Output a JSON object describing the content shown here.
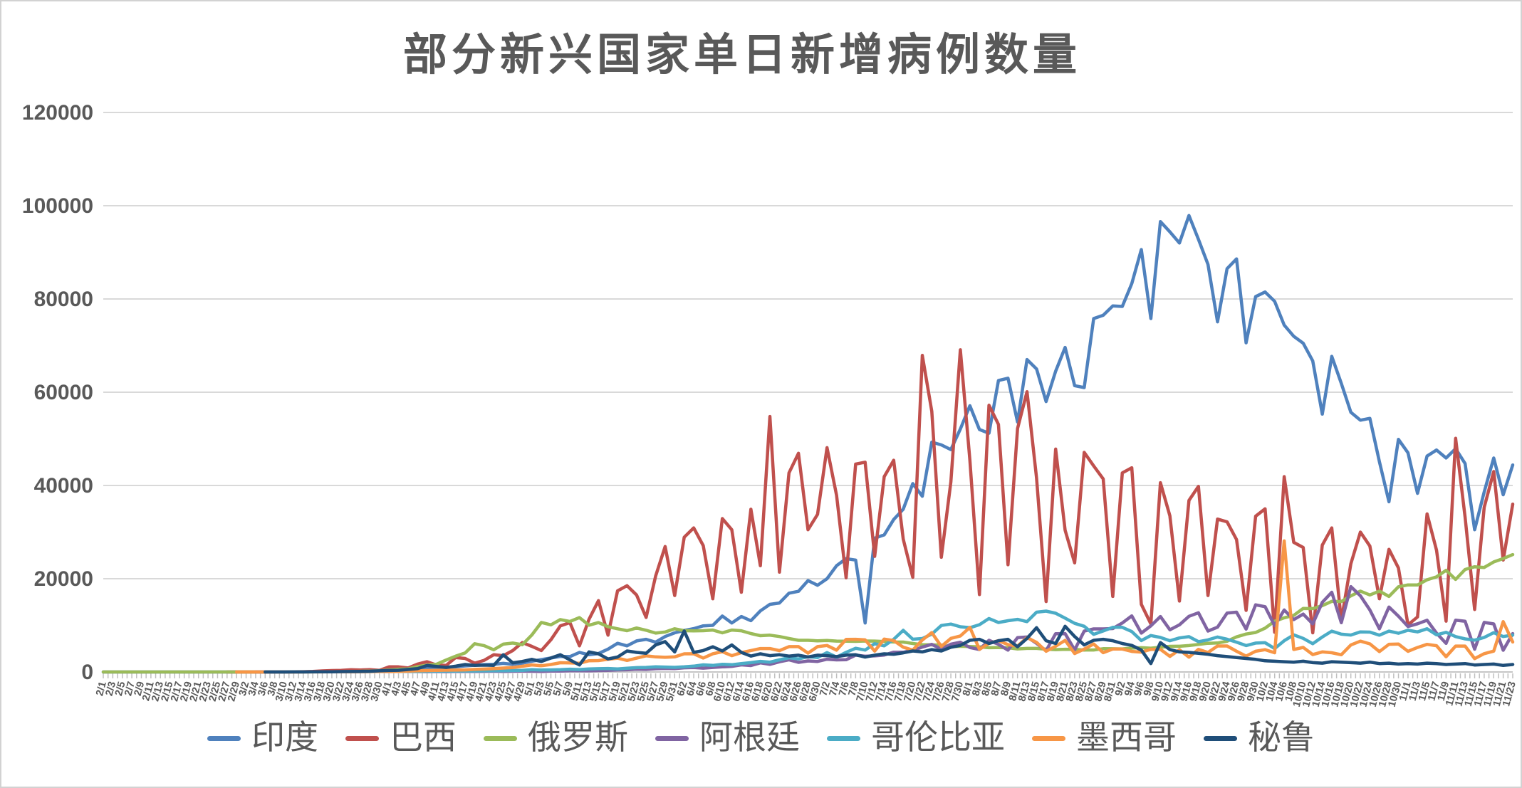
{
  "chart_data": {
    "type": "line",
    "title": "部分新兴国家单日新增病例数量",
    "xlabel": "",
    "ylabel": "",
    "ylim": [
      0,
      120000
    ],
    "y_ticks": [
      "0",
      "20000",
      "40000",
      "60000",
      "80000",
      "100000",
      "120000"
    ],
    "grid": true,
    "legend_position": "bottom",
    "axis_text_color": "#595959",
    "gridline_color": "#d9d9d9",
    "categories": [
      "2/1",
      "2/3",
      "2/5",
      "2/7",
      "2/9",
      "2/11",
      "2/13",
      "2/15",
      "2/17",
      "2/19",
      "2/21",
      "2/23",
      "2/25",
      "2/27",
      "2/29",
      "3/2",
      "3/4",
      "3/6",
      "3/8",
      "3/10",
      "3/12",
      "3/14",
      "3/16",
      "3/18",
      "3/20",
      "3/22",
      "3/24",
      "3/26",
      "3/28",
      "3/30",
      "4/1",
      "4/3",
      "4/5",
      "4/7",
      "4/9",
      "4/11",
      "4/13",
      "4/15",
      "4/17",
      "4/19",
      "4/21",
      "4/23",
      "4/25",
      "4/27",
      "4/29",
      "5/1",
      "5/3",
      "5/5",
      "5/7",
      "5/9",
      "5/11",
      "5/13",
      "5/15",
      "5/17",
      "5/19",
      "5/21",
      "5/23",
      "5/25",
      "5/27",
      "5/29",
      "5/31",
      "6/2",
      "6/4",
      "6/6",
      "6/8",
      "6/10",
      "6/12",
      "6/14",
      "6/16",
      "6/18",
      "6/20",
      "6/22",
      "6/24",
      "6/26",
      "6/28",
      "6/30",
      "7/2",
      "7/4",
      "7/6",
      "7/8",
      "7/10",
      "7/12",
      "7/14",
      "7/16",
      "7/18",
      "7/20",
      "7/22",
      "7/24",
      "7/26",
      "7/28",
      "7/30",
      "8/1",
      "8/3",
      "8/5",
      "8/7",
      "8/9",
      "8/11",
      "8/13",
      "8/15",
      "8/17",
      "8/19",
      "8/21",
      "8/23",
      "8/25",
      "8/27",
      "8/29",
      "8/31",
      "9/2",
      "9/4",
      "9/6",
      "9/8",
      "9/10",
      "9/12",
      "9/14",
      "9/16",
      "9/18",
      "9/20",
      "9/22",
      "9/24",
      "9/26",
      "9/28",
      "9/30",
      "10/2",
      "10/4",
      "10/6",
      "10/8",
      "10/10",
      "10/12",
      "10/14",
      "10/16",
      "10/18",
      "10/20",
      "10/22",
      "10/24",
      "10/26",
      "10/28",
      "10/30",
      "11/1",
      "11/3",
      "11/5",
      "11/7",
      "11/9",
      "11/11",
      "11/13",
      "11/15",
      "11/17",
      "11/19",
      "11/21",
      "11/23"
    ],
    "series": [
      {
        "name": "印度",
        "key": "india",
        "color": "#4F81BD",
        "values": [
          0,
          0,
          0,
          0,
          0,
          0,
          0,
          0,
          0,
          0,
          0,
          0,
          0,
          0,
          0,
          2,
          3,
          5,
          8,
          10,
          15,
          25,
          30,
          50,
          75,
          100,
          120,
          150,
          180,
          230,
          400,
          550,
          600,
          700,
          850,
          900,
          1000,
          1100,
          1300,
          1450,
          1550,
          1650,
          1850,
          1650,
          1900,
          2300,
          2650,
          3000,
          3350,
          3300,
          4200,
          3700,
          3950,
          4900,
          6150,
          5600,
          6650,
          7000,
          6400,
          7600,
          8400,
          8900,
          9300,
          9900,
          10000,
          12000,
          10500,
          11900,
          11000,
          13100,
          14500,
          14800,
          16900,
          17300,
          19600,
          18600,
          20000,
          22800,
          24300,
          24000,
          10500,
          28700,
          29400,
          32700,
          34900,
          40400,
          37700,
          49300,
          48700,
          47700,
          52100,
          57100,
          52000,
          51200,
          62500,
          63000,
          53600,
          67000,
          65000,
          58000,
          64500,
          69600,
          61400,
          61000,
          75800,
          76500,
          78500,
          78400,
          83300,
          90600,
          75800,
          96600,
          94400,
          92000,
          97900,
          92800,
          87400,
          75100,
          86500,
          88600,
          70600,
          80500,
          81500,
          79500,
          74400,
          72000,
          70500,
          66700,
          55300,
          67700,
          61900,
          55700,
          54000,
          54400,
          45100,
          36500,
          49900,
          47000,
          38300,
          46300,
          47600,
          45900,
          47900,
          44700,
          30500,
          38600,
          45900,
          38000,
          44400
        ]
      },
      {
        "name": "巴西",
        "key": "brazil",
        "color": "#C0504D",
        "values": [
          null,
          null,
          null,
          null,
          null,
          null,
          null,
          null,
          null,
          null,
          null,
          null,
          null,
          1,
          1,
          1,
          2,
          6,
          13,
          25,
          34,
          60,
          120,
          230,
          300,
          350,
          480,
          430,
          500,
          350,
          1100,
          1100,
          850,
          1700,
          2200,
          1500,
          1400,
          3100,
          2900,
          1900,
          2500,
          3700,
          3500,
          4600,
          6300,
          5500,
          4600,
          6900,
          9900,
          10600,
          5600,
          11300,
          15300,
          7900,
          17400,
          18500,
          16500,
          11700,
          20600,
          26900,
          16400,
          28900,
          30900,
          27100,
          15700,
          32900,
          30500,
          17100,
          34900,
          22800,
          54800,
          21400,
          42700,
          46900,
          30500,
          33800,
          48100,
          37900,
          20200,
          44600,
          45000,
          24800,
          41900,
          45400,
          28500,
          20300,
          67900,
          55900,
          24600,
          40800,
          69100,
          45400,
          16600,
          57200,
          53100,
          23000,
          52200,
          60100,
          41600,
          15100,
          47800,
          30400,
          23400,
          47100,
          44200,
          41400,
          16200,
          42700,
          43800,
          14500,
          10300,
          40600,
          33500,
          15200,
          36800,
          39800,
          16400,
          32800,
          32200,
          28400,
          13200,
          33400,
          35000,
          8500,
          41900,
          27800,
          26700,
          8400,
          27200,
          30900,
          11000,
          23200,
          30000,
          27000,
          15700,
          26300,
          22300,
          10100,
          11800,
          33900,
          26100,
          10900,
          50100,
          33200,
          13400,
          35300,
          43000,
          24000,
          36000
        ]
      },
      {
        "name": "俄罗斯",
        "key": "russia",
        "color": "#9BBB59",
        "values": [
          0,
          0,
          0,
          0,
          0,
          0,
          0,
          0,
          0,
          0,
          0,
          0,
          0,
          0,
          0,
          0,
          1,
          2,
          3,
          8,
          10,
          15,
          30,
          30,
          50,
          60,
          90,
          130,
          180,
          270,
          440,
          600,
          660,
          1150,
          1460,
          1670,
          2560,
          3390,
          4070,
          6060,
          5640,
          4770,
          5970,
          6200,
          5840,
          7930,
          10630,
          10100,
          11230,
          10820,
          11660,
          10030,
          10600,
          9710,
          9260,
          8850,
          9430,
          8950,
          8340,
          8570,
          9270,
          8860,
          8830,
          8860,
          8990,
          8400,
          8990,
          8840,
          8250,
          7790,
          7890,
          7600,
          7180,
          6800,
          6790,
          6690,
          6760,
          6630,
          6610,
          6560,
          6640,
          6620,
          6540,
          6430,
          6410,
          6110,
          5860,
          5810,
          5770,
          5400,
          5510,
          5460,
          5390,
          5200,
          5240,
          5190,
          4950,
          5060,
          5060,
          4890,
          4790,
          4870,
          4850,
          4700,
          4710,
          4990,
          4980,
          4950,
          5110,
          5200,
          5100,
          5310,
          5490,
          5510,
          5670,
          5910,
          6150,
          6220,
          6600,
          7520,
          8140,
          8480,
          9410,
          10890,
          11620,
          12130,
          13630,
          13590,
          14230,
          15150,
          15100,
          16320,
          17340,
          16520,
          17350,
          16200,
          18280,
          18670,
          18650,
          19770,
          20400,
          21800,
          19850,
          21980,
          22570,
          22410,
          23610,
          24320,
          25170
        ]
      },
      {
        "name": "阿根廷",
        "key": "argentina",
        "color": "#8064A2",
        "values": [
          null,
          null,
          null,
          null,
          null,
          null,
          null,
          null,
          null,
          null,
          null,
          null,
          null,
          null,
          null,
          null,
          1,
          2,
          4,
          8,
          15,
          20,
          30,
          35,
          45,
          55,
          75,
          90,
          100,
          120,
          90,
          120,
          100,
          90,
          80,
          100,
          70,
          130,
          100,
          100,
          140,
          170,
          110,
          160,
          170,
          150,
          110,
          190,
          180,
          260,
          280,
          250,
          300,
          350,
          440,
          470,
          600,
          550,
          700,
          770,
          720,
          900,
          950,
          830,
          980,
          1100,
          1200,
          1530,
          1370,
          1960,
          1630,
          2190,
          2610,
          2060,
          2360,
          2260,
          2740,
          2590,
          2630,
          3600,
          3370,
          3450,
          3640,
          4250,
          4230,
          4630,
          5340,
          5930,
          4890,
          5950,
          6380,
          5240,
          4820,
          6790,
          5930,
          4690,
          7370,
          7500,
          6130,
          4560,
          8220,
          8230,
          4740,
          8770,
          9230,
          9230,
          9310,
          10500,
          12030,
          8340,
          9900,
          11900,
          9060,
          10100,
          11940,
          12700,
          8780,
          9600,
          12620,
          12830,
          9190,
          14390,
          14000,
          9950,
          13300,
          11240,
          12410,
          10320,
          14930,
          17100,
          10560,
          18300,
          16330,
          13300,
          9250,
          13920,
          11970,
          9750,
          10340,
          11100,
          8320,
          6130,
          11100,
          10880,
          4890,
          10620,
          10310,
          4660,
          8230
        ]
      },
      {
        "name": "哥伦比亚",
        "key": "colombia",
        "color": "#4BACC6",
        "values": [
          null,
          null,
          null,
          null,
          null,
          null,
          null,
          null,
          null,
          null,
          null,
          null,
          null,
          null,
          null,
          null,
          null,
          1,
          1,
          3,
          9,
          15,
          22,
          30,
          40,
          50,
          60,
          80,
          90,
          100,
          110,
          120,
          130,
          120,
          150,
          170,
          180,
          200,
          230,
          210,
          240,
          260,
          280,
          300,
          350,
          500,
          420,
          450,
          490,
          600,
          520,
          660,
          700,
          750,
          640,
          800,
          930,
          970,
          1100,
          1050,
          1000,
          1100,
          1250,
          1520,
          1400,
          1650,
          1550,
          1800,
          2000,
          2270,
          2100,
          2600,
          3060,
          2800,
          3270,
          3100,
          4160,
          3170,
          4210,
          5080,
          4700,
          6060,
          5600,
          7000,
          8930,
          7030,
          7170,
          8120,
          9970,
          10280,
          9700,
          9490,
          10140,
          11470,
          10610,
          11000,
          11290,
          10800,
          12830,
          13060,
          12590,
          11540,
          10430,
          9800,
          8070,
          8800,
          9580,
          9580,
          8670,
          6730,
          7810,
          7400,
          6700,
          7300,
          7570,
          6500,
          6880,
          7500,
          7020,
          6400,
          5660,
          6200,
          6280,
          5020,
          6700,
          7960,
          7200,
          6060,
          7500,
          8770,
          8100,
          7920,
          8600,
          8550,
          7900,
          8770,
          8300,
          8950,
          8600,
          9260,
          7970,
          8500,
          7590,
          7100,
          6820,
          7400,
          8430,
          7600,
          7920
        ]
      },
      {
        "name": "墨西哥",
        "key": "mexico",
        "color": "#F79646",
        "values": [
          null,
          null,
          null,
          null,
          null,
          null,
          null,
          null,
          null,
          null,
          null,
          null,
          null,
          null,
          0,
          1,
          1,
          2,
          3,
          4,
          5,
          8,
          12,
          20,
          30,
          40,
          50,
          65,
          90,
          110,
          120,
          130,
          180,
          260,
          300,
          350,
          380,
          390,
          450,
          550,
          620,
          730,
          840,
          950,
          1220,
          1510,
          1350,
          1610,
          1980,
          1940,
          1860,
          2410,
          2440,
          2710,
          2960,
          2480,
          2960,
          3460,
          3230,
          3150,
          3230,
          3890,
          3910,
          3000,
          3910,
          4350,
          3490,
          4150,
          4600,
          5030,
          5030,
          4580,
          5440,
          5440,
          4050,
          5430,
          5680,
          4680,
          6990,
          7000,
          6890,
          4480,
          7050,
          6740,
          5310,
          4690,
          6860,
          8440,
          5480,
          7210,
          7730,
          9560,
          4850,
          6140,
          6720,
          5860,
          5560,
          7370,
          6350,
          4450,
          5510,
          6780,
          3950,
          4920,
          6000,
          4130,
          4920,
          4920,
          4410,
          4260,
          4860,
          4860,
          3340,
          4770,
          3180,
          4840,
          4180,
          5570,
          5570,
          4450,
          3400,
          4450,
          4780,
          4120,
          28100,
          4830,
          5260,
          3720,
          4300,
          4120,
          3700,
          5790,
          6610,
          6030,
          4360,
          5940,
          6000,
          4430,
          5250,
          5930,
          5630,
          3270,
          5560,
          5560,
          2870,
          3920,
          4470,
          10790,
          6430
        ]
      },
      {
        "name": "秘鲁",
        "key": "peru",
        "color": "#1F4E79",
        "values": [
          null,
          null,
          null,
          null,
          null,
          null,
          null,
          null,
          null,
          null,
          null,
          null,
          null,
          null,
          null,
          null,
          null,
          1,
          2,
          5,
          11,
          15,
          25,
          40,
          50,
          70,
          90,
          120,
          160,
          250,
          320,
          360,
          530,
          710,
          1390,
          1190,
          970,
          1240,
          1600,
          1410,
          1460,
          1410,
          3680,
          1970,
          2260,
          2700,
          2240,
          3000,
          3700,
          2600,
          1500,
          4300,
          3900,
          2800,
          3200,
          4500,
          4200,
          4000,
          5800,
          6500,
          4300,
          8800,
          4200,
          4600,
          5400,
          4500,
          5800,
          4200,
          3400,
          3900,
          3500,
          3700,
          3400,
          3600,
          3200,
          3600,
          3500,
          3300,
          3600,
          3700,
          3200,
          3600,
          3900,
          3800,
          4100,
          4500,
          4300,
          4800,
          4500,
          5300,
          5700,
          6800,
          7000,
          6100,
          6700,
          7000,
          5400,
          7200,
          9500,
          6700,
          6100,
          9800,
          7600,
          5800,
          6800,
          7000,
          6700,
          6100,
          5700,
          4700,
          1800,
          6300,
          4800,
          4300,
          4200,
          4000,
          3800,
          3500,
          3300,
          3100,
          2900,
          2700,
          2400,
          2300,
          2200,
          2100,
          2300,
          2000,
          1900,
          2200,
          2100,
          2000,
          1900,
          2100,
          1800,
          1900,
          1700,
          1800,
          1700,
          1900,
          1800,
          1600,
          1700,
          1800,
          1500,
          1600,
          1700,
          1400,
          1600
        ]
      }
    ]
  }
}
